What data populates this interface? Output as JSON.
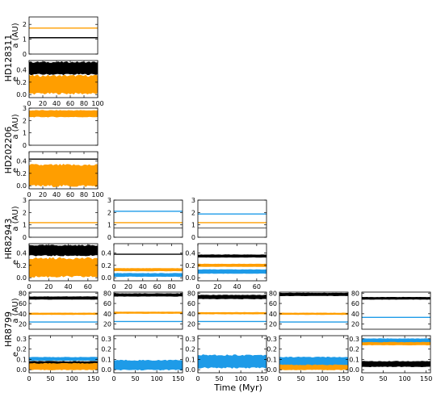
{
  "colors": {
    "black": "#000000",
    "orange": "#ff9e00",
    "blue": "#1e9be8",
    "gray": "#808080"
  },
  "figure": {
    "xlabel": "Time (Myr)"
  },
  "chart_data": [
    {
      "type": "line",
      "system": "HD128311",
      "quantity": "a",
      "ylabel": "a (AU)",
      "xlim": [
        0,
        100
      ],
      "ylim": [
        0,
        2.5
      ],
      "yticks": [
        0,
        1,
        2
      ],
      "ytick_labels": [
        "0",
        "1",
        "2"
      ],
      "x_ticks_shown": false,
      "series": [
        {
          "color": "black",
          "value": 1.1
        },
        {
          "color": "orange",
          "value": 1.75
        }
      ]
    },
    {
      "type": "line",
      "system": "HD128311",
      "quantity": "e",
      "ylabel": "e",
      "xlim": [
        0,
        100
      ],
      "ylim": [
        -0.05,
        0.55
      ],
      "yticks": [
        0,
        0.2,
        0.4
      ],
      "ytick_labels": [
        "0.0",
        "0.2",
        "0.4"
      ],
      "xticks": [
        0,
        20,
        40,
        60,
        80,
        100
      ],
      "xtick_labels": [
        "0",
        "20",
        "40",
        "60",
        "80",
        "100"
      ],
      "series": [
        {
          "color": "black",
          "band": [
            0.33,
            0.52
          ]
        },
        {
          "color": "orange",
          "band": [
            0.02,
            0.3
          ]
        }
      ]
    },
    {
      "type": "line",
      "system": "HD202206",
      "quantity": "a",
      "ylabel": "a (AU)",
      "xlim": [
        0,
        100
      ],
      "ylim": [
        0,
        3
      ],
      "yticks": [
        0,
        1,
        2,
        3
      ],
      "ytick_labels": [
        "0",
        "1",
        "2",
        "3"
      ],
      "x_ticks_shown": false,
      "series": [
        {
          "color": "orange",
          "band": [
            2.3,
            2.8
          ]
        }
      ]
    },
    {
      "type": "line",
      "system": "HD202206",
      "quantity": "e",
      "ylabel": "e",
      "xlim": [
        0,
        100
      ],
      "ylim": [
        -0.05,
        0.55
      ],
      "yticks": [
        0,
        0.2,
        0.4
      ],
      "ytick_labels": [
        "0.0",
        "0.2",
        "0.4"
      ],
      "xticks": [
        0,
        20,
        40,
        60,
        80,
        100
      ],
      "xtick_labels": [
        "0",
        "20",
        "40",
        "60",
        "80",
        "100"
      ],
      "series": [
        {
          "color": "black",
          "value": 0.43
        },
        {
          "color": "orange",
          "band": [
            0.0,
            0.33
          ]
        }
      ]
    },
    {
      "type": "line",
      "system": "HR82943",
      "quantity": "a",
      "ylabel": "a (AU)",
      "xlim": [
        0,
        70
      ],
      "ylim": [
        0,
        3
      ],
      "yticks": [
        0,
        1,
        2,
        3
      ],
      "ytick_labels": [
        "0",
        "1",
        "2",
        "3"
      ],
      "x_ticks_shown": false,
      "series": [
        {
          "color": "gray",
          "value": 0.75
        },
        {
          "color": "orange",
          "value": 1.18
        }
      ]
    },
    {
      "type": "line",
      "system": "HR82943",
      "quantity": "e",
      "ylabel": "e",
      "xlim": [
        0,
        70
      ],
      "ylim": [
        -0.05,
        0.55
      ],
      "yticks": [
        0,
        0.2,
        0.4
      ],
      "ytick_labels": [
        "0.0",
        "0.2",
        "0.4"
      ],
      "xticks": [
        0,
        20,
        40,
        60
      ],
      "xtick_labels": [
        "0",
        "20",
        "40",
        "60"
      ],
      "series": [
        {
          "color": "black",
          "band": [
            0.36,
            0.52
          ]
        },
        {
          "color": "orange",
          "band": [
            0.02,
            0.31
          ]
        }
      ]
    },
    {
      "type": "line",
      "system": "HR82943",
      "quantity": "a",
      "xlim": [
        0,
        95
      ],
      "ylim": [
        0,
        3
      ],
      "yticks": [
        0,
        1,
        2,
        3
      ],
      "ytick_labels": [
        "0",
        "1",
        "2",
        "3"
      ],
      "x_ticks_shown": false,
      "series": [
        {
          "color": "gray",
          "value": 0.75
        },
        {
          "color": "orange",
          "value": 1.18
        },
        {
          "color": "blue",
          "value": 2.1
        }
      ]
    },
    {
      "type": "line",
      "system": "HR82943",
      "quantity": "e",
      "xlim": [
        0,
        95
      ],
      "ylim": [
        -0.05,
        0.55
      ],
      "yticks": [
        0,
        0.2,
        0.4
      ],
      "ytick_labels": [
        "0.0",
        "0.2",
        "0.4"
      ],
      "xticks": [
        0,
        20,
        40,
        60,
        80
      ],
      "xtick_labels": [
        "0",
        "20",
        "40",
        "60",
        "80"
      ],
      "series": [
        {
          "color": "black",
          "value": 0.38
        },
        {
          "color": "orange",
          "band": [
            0.11,
            0.15
          ]
        },
        {
          "color": "blue",
          "band": [
            0.02,
            0.07
          ]
        }
      ]
    },
    {
      "type": "line",
      "system": "HR82943",
      "quantity": "a",
      "xlim": [
        0,
        70
      ],
      "ylim": [
        0,
        3
      ],
      "yticks": [
        0,
        1,
        2,
        3
      ],
      "ytick_labels": [
        "0",
        "1",
        "2",
        "3"
      ],
      "x_ticks_shown": false,
      "series": [
        {
          "color": "gray",
          "value": 0.75
        },
        {
          "color": "orange",
          "value": 1.18
        },
        {
          "color": "blue",
          "value": 1.88
        }
      ]
    },
    {
      "type": "line",
      "system": "HR82943",
      "quantity": "e",
      "xlim": [
        0,
        70
      ],
      "ylim": [
        -0.05,
        0.55
      ],
      "yticks": [
        0,
        0.2,
        0.4
      ],
      "ytick_labels": [
        "0.0",
        "0.2",
        "0.4"
      ],
      "xticks": [
        0,
        20,
        40,
        60
      ],
      "xtick_labels": [
        "0",
        "20",
        "40",
        "60"
      ],
      "series": [
        {
          "color": "black",
          "band": [
            0.33,
            0.37
          ]
        },
        {
          "color": "orange",
          "band": [
            0.18,
            0.22
          ]
        },
        {
          "color": "blue",
          "band": [
            0.07,
            0.13
          ]
        }
      ]
    },
    {
      "type": "line",
      "system": "HR8799",
      "quantity": "a",
      "ylabel": "a (AU)",
      "xlim": [
        0,
        160
      ],
      "ylim": [
        10,
        82
      ],
      "yticks": [
        20,
        40,
        60,
        80
      ],
      "ytick_labels": [
        "20",
        "40",
        "60",
        "80"
      ],
      "x_ticks_shown": false,
      "series": [
        {
          "color": "black",
          "band": [
            68,
            73
          ]
        },
        {
          "color": "orange",
          "band": [
            38.5,
            41.5
          ]
        },
        {
          "color": "blue",
          "value": 24
        }
      ]
    },
    {
      "type": "line",
      "system": "HR8799",
      "quantity": "e",
      "ylabel": "e",
      "xlim": [
        0,
        160
      ],
      "ylim": [
        -0.03,
        0.33
      ],
      "yticks": [
        0,
        0.1,
        0.2,
        0.3
      ],
      "ytick_labels": [
        "0.0",
        "0.1",
        "0.2",
        "0.3"
      ],
      "xticks": [
        0,
        50,
        100,
        150
      ],
      "xtick_labels": [
        "0",
        "50",
        "100",
        "150"
      ],
      "series": [
        {
          "color": "black",
          "band": [
            0.035,
            0.08
          ]
        },
        {
          "color": "orange",
          "band": [
            0.0,
            0.06
          ]
        },
        {
          "color": "blue",
          "band": [
            0.09,
            0.12
          ]
        }
      ]
    },
    {
      "type": "line",
      "system": "HR8799",
      "quantity": "a",
      "xlim": [
        0,
        160
      ],
      "ylim": [
        10,
        82
      ],
      "yticks": [
        20,
        40,
        60,
        80
      ],
      "ytick_labels": [
        "20",
        "40",
        "60",
        "80"
      ],
      "x_ticks_shown": false,
      "series": [
        {
          "color": "black",
          "band": [
            74,
            79
          ]
        },
        {
          "color": "orange",
          "band": [
            40.5,
            43.5
          ]
        },
        {
          "color": "blue",
          "value": 25
        }
      ]
    },
    {
      "type": "line",
      "system": "HR8799",
      "quantity": "e",
      "xlim": [
        0,
        160
      ],
      "ylim": [
        -0.03,
        0.33
      ],
      "yticks": [
        0,
        0.1,
        0.2,
        0.3
      ],
      "ytick_labels": [
        "0.0",
        "0.1",
        "0.2",
        "0.3"
      ],
      "xticks": [
        0,
        50,
        100,
        150
      ],
      "xtick_labels": [
        "0",
        "50",
        "100",
        "150"
      ],
      "series": [
        {
          "color": "blue",
          "band": [
            0.0,
            0.09
          ]
        }
      ]
    },
    {
      "type": "line",
      "system": "HR8799",
      "quantity": "a",
      "xlim": [
        0,
        160
      ],
      "ylim": [
        10,
        82
      ],
      "yticks": [
        20,
        40,
        60,
        80
      ],
      "ytick_labels": [
        "20",
        "40",
        "60",
        "80"
      ],
      "x_ticks_shown": false,
      "series": [
        {
          "color": "black",
          "band": [
            69,
            76
          ]
        },
        {
          "color": "orange",
          "band": [
            39.5,
            42.5
          ]
        },
        {
          "color": "blue",
          "value": 25
        }
      ]
    },
    {
      "type": "line",
      "system": "HR8799",
      "quantity": "e",
      "xlim": [
        0,
        160
      ],
      "ylim": [
        -0.03,
        0.33
      ],
      "yticks": [
        0,
        0.1,
        0.2,
        0.3
      ],
      "ytick_labels": [
        "0.0",
        "0.1",
        "0.2",
        "0.3"
      ],
      "xticks": [
        0,
        50,
        100,
        150
      ],
      "xtick_labels": [
        "0",
        "50",
        "100",
        "150"
      ],
      "series": [
        {
          "color": "blue",
          "band": [
            0.02,
            0.14
          ]
        }
      ]
    },
    {
      "type": "line",
      "system": "HR8799",
      "quantity": "a",
      "xlim": [
        0,
        160
      ],
      "ylim": [
        10,
        82
      ],
      "yticks": [
        20,
        40,
        60,
        80
      ],
      "ytick_labels": [
        "20",
        "40",
        "60",
        "80"
      ],
      "x_ticks_shown": false,
      "series": [
        {
          "color": "black",
          "band": [
            75,
            80
          ]
        },
        {
          "color": "orange",
          "band": [
            38.5,
            41.5
          ]
        },
        {
          "color": "blue",
          "value": 24
        }
      ]
    },
    {
      "type": "line",
      "system": "HR8799",
      "quantity": "e",
      "xlim": [
        0,
        160
      ],
      "ylim": [
        -0.03,
        0.33
      ],
      "yticks": [
        0,
        0.1,
        0.2,
        0.3
      ],
      "ytick_labels": [
        "0.0",
        "0.1",
        "0.2",
        "0.3"
      ],
      "xticks": [
        0,
        50,
        100,
        150
      ],
      "xtick_labels": [
        "0",
        "50",
        "100",
        "150"
      ],
      "series": [
        {
          "color": "orange",
          "band": [
            0.0,
            0.06
          ]
        },
        {
          "color": "blue",
          "band": [
            0.05,
            0.12
          ]
        }
      ]
    },
    {
      "type": "line",
      "system": "HR8799",
      "quantity": "a",
      "xlim": [
        0,
        160
      ],
      "ylim": [
        10,
        82
      ],
      "yticks": [
        20,
        40,
        60,
        80
      ],
      "ytick_labels": [
        "20",
        "40",
        "60",
        "80"
      ],
      "x_ticks_shown": false,
      "series": [
        {
          "color": "black",
          "band": [
            68,
            72
          ]
        },
        {
          "color": "blue",
          "value": 33
        }
      ]
    },
    {
      "type": "line",
      "system": "HR8799",
      "quantity": "e",
      "xlim": [
        0,
        160
      ],
      "ylim": [
        -0.03,
        0.33
      ],
      "yticks": [
        0,
        0.1,
        0.2,
        0.3
      ],
      "ytick_labels": [
        "0.0",
        "0.1",
        "0.2",
        "0.3"
      ],
      "xticks": [
        0,
        50,
        100,
        150
      ],
      "xtick_labels": [
        "0",
        "50",
        "100",
        "150"
      ],
      "series": [
        {
          "color": "black",
          "band": [
            0.03,
            0.08
          ]
        },
        {
          "color": "orange",
          "band": [
            0.24,
            0.27
          ]
        },
        {
          "color": "blue",
          "band": [
            0.27,
            0.3
          ]
        }
      ]
    }
  ]
}
